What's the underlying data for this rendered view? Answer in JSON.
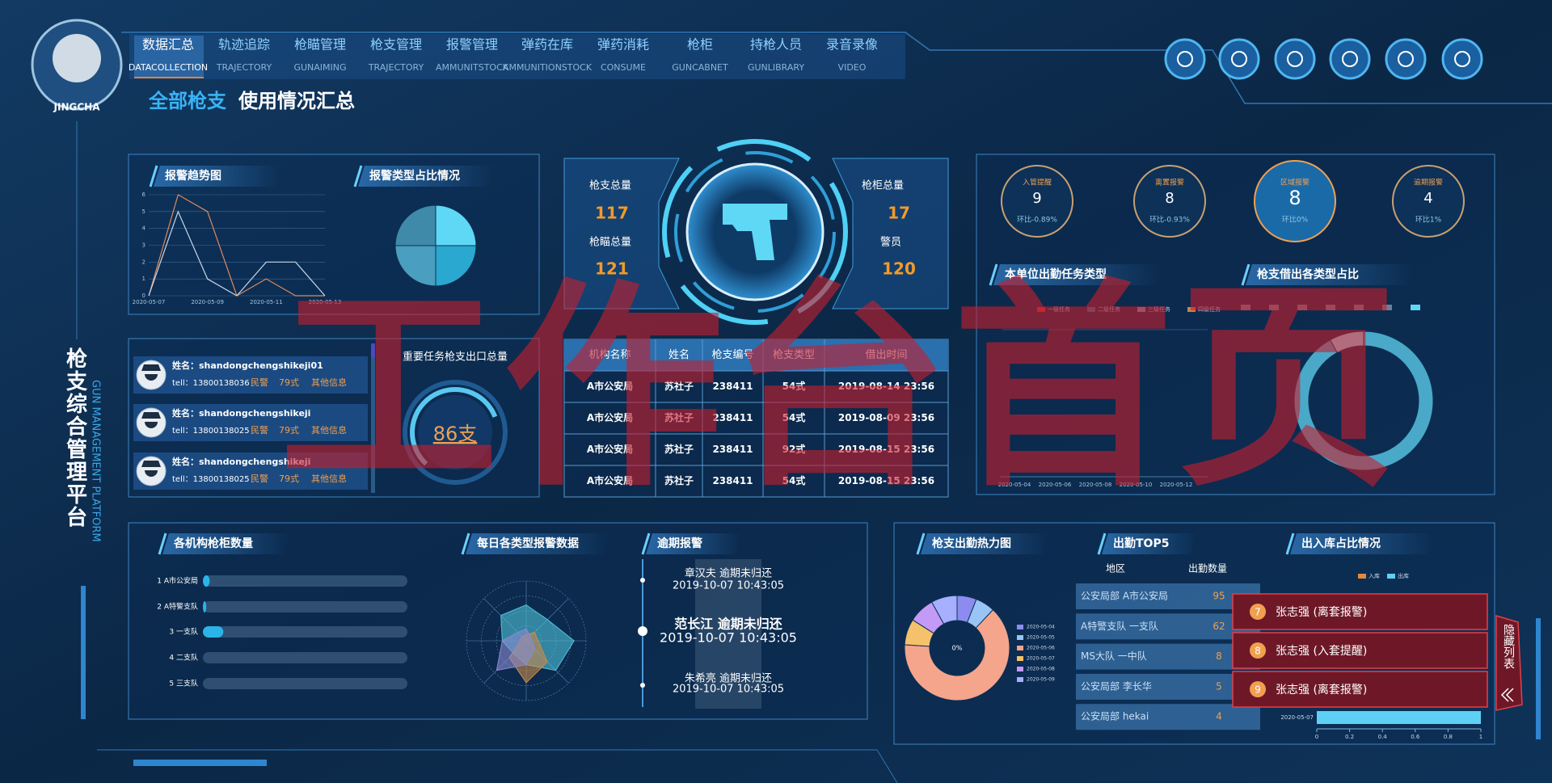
{
  "header": {
    "nav": [
      {
        "label": "数据汇总",
        "sub": "DATACOLLECTION"
      },
      {
        "label": "轨迹追踪",
        "sub": "TRAJECTORY"
      },
      {
        "label": "枪瞄管理",
        "sub": "GUNAIMING"
      },
      {
        "label": "枪支管理",
        "sub": "TRAJECTORY"
      },
      {
        "label": "报警管理",
        "sub": "AMMUNITSTOCK"
      },
      {
        "label": "弹药在库",
        "sub": "AMMUNITIONSTOCK"
      },
      {
        "label": "弹药消耗",
        "sub": "CONSUME"
      },
      {
        "label": "枪柜",
        "sub": "GUNCABNET"
      },
      {
        "label": "持枪人员",
        "sub": "GUNLIBRARY"
      },
      {
        "label": "录音录像",
        "sub": "VIDEO"
      }
    ],
    "logo": "JINGCHA",
    "title_a": "全部枪支",
    "title_b": "使用情况汇总",
    "platform": "枪支综合管理平台",
    "platform_en": "GUN MANAGEMENT PLATFORM"
  },
  "watermark": "工作台首页",
  "alarm_trend": {
    "type": "line",
    "title": "报警趋势图",
    "categories": [
      "2020-05-07",
      null,
      "2020-05-09",
      null,
      "2020-05-11",
      null,
      "2020-05-13"
    ],
    "series": [
      {
        "color": "#e0895a",
        "values": [
          0,
          6,
          5,
          0,
          1,
          0,
          0
        ]
      },
      {
        "color": "#c8d8e8",
        "values": [
          0,
          5,
          1,
          0,
          2,
          2,
          0
        ]
      }
    ],
    "ylim": [
      0,
      6
    ],
    "yticks": [
      0,
      1,
      2,
      3,
      4,
      5,
      6
    ]
  },
  "alarm_types": {
    "type": "pie",
    "title": "报警类型占比情况",
    "values": [
      25,
      25,
      25,
      25
    ],
    "colors": [
      "#5fd8f5",
      "#2aa8d0",
      "#4a9ec0",
      "#3f8aa8"
    ]
  },
  "stats": [
    {
      "label": "枪支总量",
      "value": 117
    },
    {
      "label": "枪瞄总量",
      "value": 121
    },
    {
      "label": "枪柜总量",
      "value": 17
    },
    {
      "label": "警员",
      "value": 120
    }
  ],
  "alerts": [
    {
      "label": "入管提醒",
      "value": 9,
      "change": "环比-0.89%"
    },
    {
      "label": "离置报警",
      "value": 8,
      "change": "环比-0.93%"
    },
    {
      "label": "区域报警",
      "value": 8,
      "change": "环比0%"
    },
    {
      "label": "逾期报警",
      "value": 4,
      "change": "环比1%"
    }
  ],
  "duty_types": {
    "title": "本单位出勤任务类型",
    "legend": [
      "一级任务",
      "二级任务",
      "三级任务",
      "四级任务"
    ],
    "legend_colors": [
      "#c0392b",
      "#2d6e9e",
      "#5aa0b8",
      "#c9834a"
    ],
    "categories": [
      "2020-05-04",
      "2020-05-06",
      "2020-05-08",
      "2020-05-10",
      "2020-05-12"
    ]
  },
  "loan_types": {
    "type": "pie",
    "title": "枪支借出各类型占比",
    "values": [
      92,
      8
    ],
    "colors": [
      "#4aa9c9",
      "#8fe0f5"
    ]
  },
  "personnel": [
    {
      "name": "姓名：shandongchengshikeji01",
      "tel": "tell：13800138036",
      "role": "民警",
      "gun": "79式",
      "more": "其他信息"
    },
    {
      "name": "姓名：shandongchengshikeji",
      "tel": "tell：13800138025",
      "role": "民警",
      "gun": "79式",
      "more": "其他信息"
    },
    {
      "name": "姓名：shandongchengshikeji",
      "tel": "tell：13800138025",
      "role": "民警",
      "gun": "79式",
      "more": "其他信息"
    }
  ],
  "task_total": {
    "title": "重要任务枪支出口总量",
    "value": "86支"
  },
  "table": {
    "headers": [
      "机构名称",
      "姓名",
      "枪支编号",
      "枪支类型",
      "借出时间"
    ],
    "rows": [
      [
        "A市公安局",
        "苏社子",
        "238411",
        "54式",
        "2019-08-14 23:56"
      ],
      [
        "A市公安局",
        "苏社子",
        "238411",
        "54式",
        "2019-08-09 23:56"
      ],
      [
        "A市公安局",
        "苏社子",
        "238411",
        "92式",
        "2019-08-15 23:56"
      ],
      [
        "A市公安局",
        "苏社子",
        "238411",
        "54式",
        "2019-08-15 23:56"
      ]
    ]
  },
  "cabinets": {
    "type": "hbar",
    "title": "各机构枪柜数量",
    "categories": [
      "1 A市公安局",
      "2 A特警支队",
      "3 一支队",
      "4 二支队",
      "5 三支队"
    ],
    "values": [
      1,
      0.5,
      3,
      0,
      0
    ],
    "xlim": [
      0,
      30
    ],
    "color": "#2bb4e8"
  },
  "daily_alarms": {
    "type": "radar",
    "title": "每日各类型报警数据",
    "rlim": [
      0,
      5
    ],
    "series": [
      {
        "color": "#4fc3d8",
        "values": [
          3,
          2.5,
          4,
          3.5,
          2,
          1.5,
          2,
          3
        ]
      },
      {
        "color": "#c98a4a",
        "values": [
          0.5,
          1,
          1,
          2.5,
          3.5,
          2,
          0.5,
          0.5
        ]
      },
      {
        "color": "#8a8ad0",
        "values": [
          1,
          0.5,
          0.5,
          1,
          2,
          3.5,
          2,
          1
        ]
      }
    ]
  },
  "overdue": {
    "title": "逾期报警",
    "items": [
      {
        "text": "章汉夫 逾期未归还",
        "time": "2019-10-07 10:43:05"
      },
      {
        "text": "范长江 逾期未归还",
        "time": "2019-10-07 10:43:05"
      },
      {
        "text": "朱希亮 逾期未归还",
        "time": "2019-10-07 10:43:05"
      }
    ]
  },
  "heat": {
    "type": "pie",
    "title": "枪支出勤热力图",
    "center": "0%",
    "categories": [
      "2020-05-04",
      "2020-05-05",
      "2020-05-06",
      "2020-05-07",
      "2020-05-08",
      "2020-05-09"
    ],
    "values": [
      6,
      6,
      64,
      8,
      8,
      8
    ],
    "colors": [
      "#8c8cf0",
      "#9ac4f5",
      "#f4a58c",
      "#f5c26b",
      "#c39af5",
      "#a6b0ff"
    ]
  },
  "top5": {
    "title": "出勤TOP5",
    "headers": [
      "地区",
      "出勤数量"
    ],
    "rows": [
      [
        "公安局部 A市公安局",
        95
      ],
      [
        "A特警支队 一支队",
        62
      ],
      [
        "MS大队 一中队",
        8
      ],
      [
        "公安局部 李长华",
        5
      ],
      [
        "公安局部 hekai",
        4
      ]
    ]
  },
  "inout": {
    "type": "hbar",
    "title": "出入库占比情况",
    "categories": [
      "2020-05-07"
    ],
    "series": [
      {
        "name": "入库",
        "color": "#e08a3a",
        "values": [
          0
        ]
      },
      {
        "name": "出库",
        "color": "#5fd0f5",
        "values": [
          1
        ]
      }
    ],
    "xlim": [
      0,
      1
    ],
    "xticks": [
      0,
      0.2,
      0.4,
      0.6,
      0.8,
      1
    ]
  },
  "popup": {
    "items": [
      {
        "no": 7,
        "text": "张志强 (离套报警)"
      },
      {
        "no": 8,
        "text": "张志强 (入套提醒)"
      },
      {
        "no": 9,
        "text": "张志强 (离套报警)"
      }
    ],
    "tab": "隐藏列表"
  }
}
